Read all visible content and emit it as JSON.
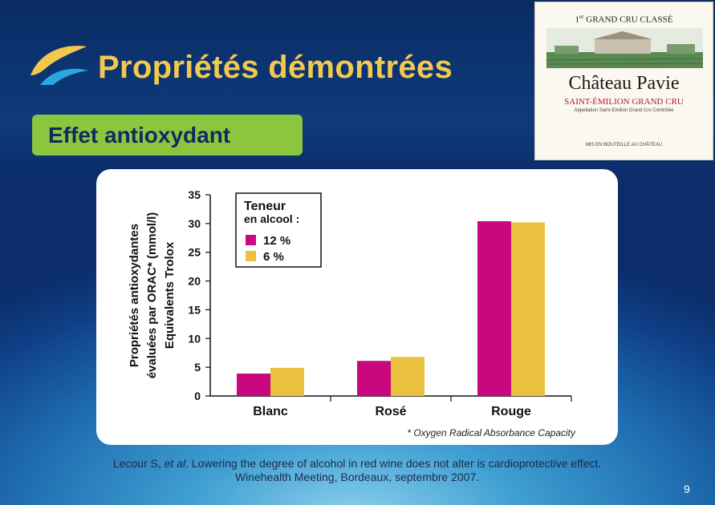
{
  "slide": {
    "title": "Propriétés démontrées",
    "subtitle": "Effet antioxydant",
    "page_number": "9",
    "citation_authors": "Lecour S, ",
    "citation_etal": "et al",
    "citation_rest": ". Lowering the degree of alcohol in red wine does not alter is cardioprotective effect.",
    "citation_line2": "Winehealth Meeting, Bordeaux, septembre 2007."
  },
  "wine_label": {
    "classe_sup": "er",
    "classe_rest": "GRAND CRU CLASSÉ",
    "classe_prefix": "1",
    "chateau": "Château Pavie",
    "appellation": "SAINT-ÉMILION GRAND CRU",
    "appellation_fine": "Appellation Saint-Emilion Grand Cru Contrôlée",
    "bottling_fine": "MIS EN BOUTEILLE AU CHÂTEAU"
  },
  "chart_data": {
    "type": "bar",
    "categories": [
      "Blanc",
      "Rosé",
      "Rouge"
    ],
    "series": [
      {
        "name": "12 %",
        "values": [
          3.9,
          6.1,
          30.4
        ],
        "color": "#c8087c"
      },
      {
        "name": "6 %",
        "values": [
          4.9,
          6.8,
          30.2
        ],
        "color": "#e9c13f"
      }
    ],
    "ylabel_lines": [
      "Propriétés antioxydantes",
      "évaluées par ORAC* (mmol/l)",
      "Equivalents Trolox"
    ],
    "yticks": [
      0,
      5,
      10,
      15,
      20,
      25,
      30,
      35
    ],
    "ylim": [
      0,
      35
    ],
    "legend_title": [
      "Teneur",
      "en alcool :"
    ],
    "legend_position": "top-left",
    "footnote": "* Oxygen Radical Absorbance Capacity",
    "grid": false
  },
  "colors": {
    "title": "#f2c94c",
    "subtitle_bg": "#8cc63f",
    "subtitle_text": "#0e2c5e",
    "series_12": "#c8087c",
    "series_6": "#e9c13f"
  }
}
